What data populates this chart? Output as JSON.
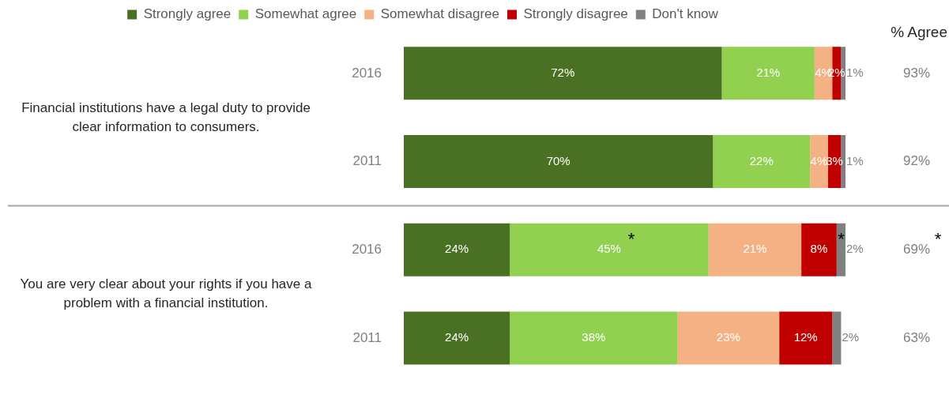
{
  "chart_data": {
    "type": "bar",
    "orientation": "horizontal",
    "stacked": true,
    "categories": [
      "2016",
      "2011",
      "2016",
      "2011"
    ],
    "series": [
      {
        "name": "Strongly agree",
        "color": "#4a7023",
        "values": [
          72,
          70,
          24,
          24
        ],
        "value_labels": [
          "72%",
          "70%",
          "24%",
          "24%"
        ]
      },
      {
        "name": "Somewhat agree",
        "color": "#92d050",
        "values": [
          21,
          22,
          45,
          38
        ],
        "value_labels": [
          "21%",
          "22%",
          "45%",
          "38%"
        ]
      },
      {
        "name": "Somewhat disagree",
        "color": "#f4b183",
        "values": [
          4,
          4,
          21,
          23
        ],
        "value_labels": [
          "4%",
          "4%",
          "21%",
          "23%"
        ]
      },
      {
        "name": "Strongly disagree",
        "color": "#c00000",
        "values": [
          2,
          3,
          8,
          12
        ],
        "value_labels": [
          "2%",
          "3%",
          "8%",
          "12%"
        ]
      },
      {
        "name": "Don't know",
        "color": "#808080",
        "values": [
          1,
          1,
          2,
          2
        ],
        "value_labels": [
          "1%",
          "1%",
          "2%",
          "2%"
        ]
      }
    ],
    "xlim": [
      0,
      100
    ],
    "tick_labels": "y",
    "grid": false,
    "legend": "top",
    "annotations": [
      "Financial institutions have a legal duty to provide clear information to consumers.",
      "You are very clear about your rights if you have a problem with a financial institution.",
      "% Agree",
      "93%",
      "92%",
      "69%",
      "63%",
      "*",
      "*",
      "*"
    ]
  }
}
